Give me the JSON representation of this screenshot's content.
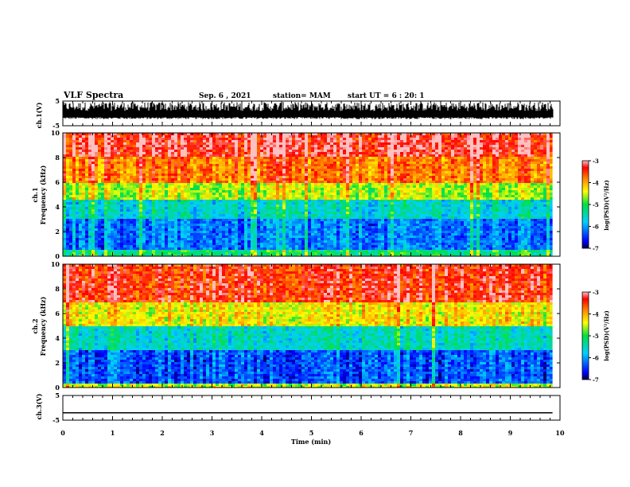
{
  "header": {
    "title": "VLF Spectra",
    "date": "Sep. 6 , 2021",
    "station": "station= MAM",
    "start": "start UT =  6 : 20: 1"
  },
  "chart_data": {
    "type": "heatmap",
    "x_axis": {
      "label": "Time (min)",
      "range": [
        0,
        10
      ],
      "ticks": [
        "0",
        "1",
        "2",
        "3",
        "4",
        "5",
        "6",
        "7",
        "8",
        "9",
        "10"
      ],
      "data_end": 9.85
    },
    "panels": [
      {
        "type": "line",
        "ylabel": "ch.1(V)",
        "ylim": [
          -5,
          5
        ],
        "yticks": [
          "5",
          "-5"
        ],
        "description_values": {
          "min": -2.3,
          "max": 4.6,
          "style": "dense noise"
        }
      },
      {
        "type": "heatmap",
        "ylabel": "ch.1\nFrequency (kHz)",
        "ylabel_line1": "ch.1",
        "ylabel_line2": "Frequency (kHz)",
        "ylim": [
          0,
          10
        ],
        "yticks": [
          "0",
          "2",
          "4",
          "6",
          "8",
          "10"
        ],
        "bands_khz": [
          {
            "from": 0,
            "to": 0.5,
            "level": -5.2
          },
          {
            "from": 0.5,
            "to": 3.0,
            "level": -6.2
          },
          {
            "from": 3.0,
            "to": 4.5,
            "level": -5.6
          },
          {
            "from": 4.5,
            "to": 6.0,
            "level": -4.6
          },
          {
            "from": 6.0,
            "to": 8.0,
            "level": -3.8
          },
          {
            "from": 8.0,
            "to": 10.0,
            "level": -3.3
          }
        ],
        "colorbar": {
          "label": "log(PSD)(V²/Hz)",
          "range": [
            -7,
            -3
          ],
          "ticks": [
            "-3",
            "-4",
            "-5",
            "-6",
            "-7"
          ]
        }
      },
      {
        "type": "heatmap",
        "ylabel": "ch.2\nFrequency (kHz)",
        "ylabel_line1": "ch.2",
        "ylabel_line2": "Frequency (kHz)",
        "ylim": [
          0,
          10
        ],
        "yticks": [
          "0",
          "2",
          "4",
          "6",
          "8",
          "10"
        ],
        "bands_khz": [
          {
            "from": 0,
            "to": 0.3,
            "level": -4.5
          },
          {
            "from": 0.3,
            "to": 3.0,
            "level": -6.3
          },
          {
            "from": 3.0,
            "to": 5.0,
            "level": -5.5
          },
          {
            "from": 5.0,
            "to": 7.0,
            "level": -4.3
          },
          {
            "from": 7.0,
            "to": 10.0,
            "level": -3.4
          }
        ],
        "colorbar": {
          "label": "log(PSD)(V²/Hz)",
          "range": [
            -7,
            -3
          ],
          "ticks": [
            "-3",
            "-4",
            "-5",
            "-6",
            "-7"
          ]
        }
      },
      {
        "type": "line",
        "ylabel": "ch.3(V)",
        "ylim": [
          -5,
          5
        ],
        "yticks": [
          "5",
          "-5"
        ],
        "constant_value": -2
      }
    ]
  }
}
